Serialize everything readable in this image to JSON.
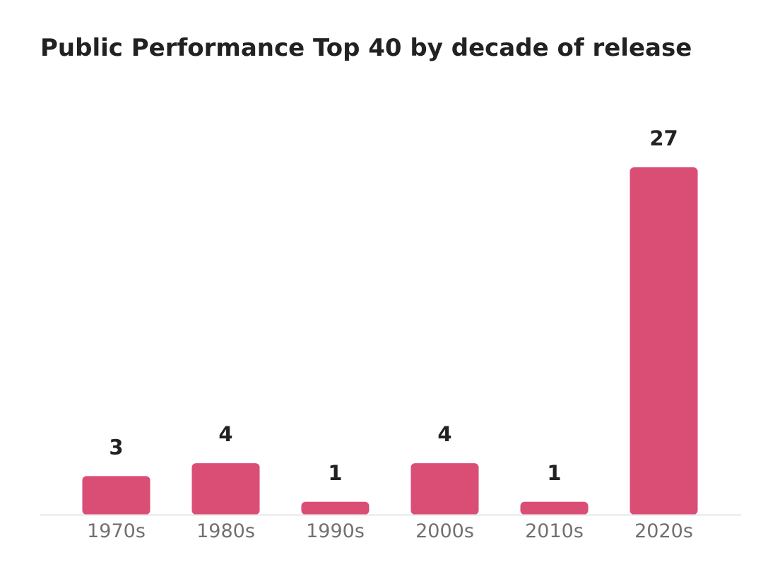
{
  "chart_data": {
    "type": "bar",
    "title": "Public Performance Top 40 by decade of release",
    "categories": [
      "1970s",
      "1980s",
      "1990s",
      "2000s",
      "2010s",
      "2020s"
    ],
    "values": [
      3,
      4,
      1,
      4,
      1,
      27
    ],
    "xlabel": "",
    "ylabel": "",
    "ylim": [
      0,
      27
    ],
    "grid": false,
    "legend": "none",
    "data_labels": true,
    "colors": {
      "bar": "#DA4E76",
      "baseline": "#E6E6E6",
      "label": "#222222",
      "tick": "#707070"
    }
  }
}
